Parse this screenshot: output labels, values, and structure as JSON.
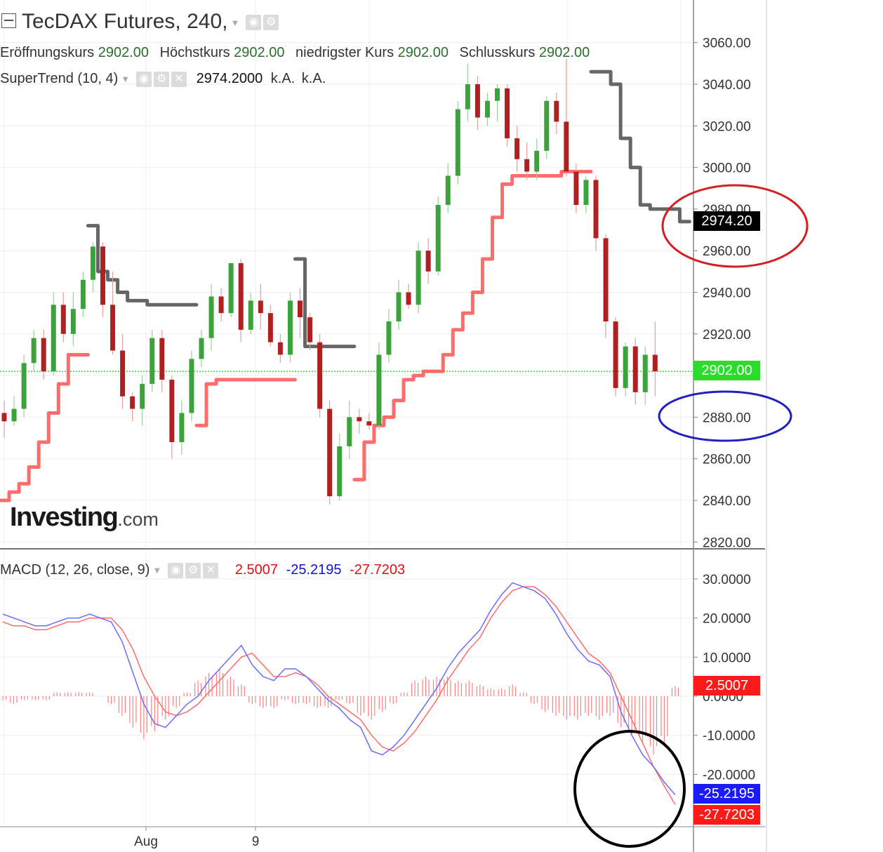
{
  "header": {
    "symbol_title": "TecDAX Futures, 240,",
    "ohlc": [
      {
        "label": "Eröffnungskurs",
        "value": "2902.00"
      },
      {
        "label": "Höchstkurs",
        "value": "2902.00"
      },
      {
        "label": "niedrigster Kurs",
        "value": "2902.00"
      },
      {
        "label": "Schlusskurs",
        "value": "2902.00"
      }
    ]
  },
  "supertrend": {
    "label": "SuperTrend (10, 4)",
    "value": "2974.2000",
    "na1": "k.A.",
    "na2": "k.A."
  },
  "macd": {
    "label": "MACD (12, 26, close, 9)",
    "hist_value": "2.5007",
    "macd_value": "-25.2195",
    "signal_value": "-27.7203"
  },
  "badges": {
    "supertrend": "2974.20",
    "last_price": "2902.00",
    "hist": "2.5007",
    "macd": "-25.2195",
    "signal": "-27.7203"
  },
  "logo": {
    "main": "Investing",
    "suffix": ".com"
  },
  "colors": {
    "up": "#3aa33a",
    "down": "#b02020",
    "supertrend_up": "#ff5c5c",
    "supertrend_down": "#555555",
    "macd_line": "#6b6bff",
    "signal_line": "#ff6b6b",
    "histogram": "#ff8080",
    "last_price_badge": "#2bdc2b",
    "supertrend_badge": "#000000",
    "macd_badge": "#1a1aff",
    "signal_badge": "#ff1a1a",
    "annotation_red": "#d32020",
    "annotation_blue": "#2020c0",
    "annotation_black": "#000000"
  },
  "chart_data": [
    {
      "type": "candlestick",
      "title": "TecDAX Futures, 240,",
      "y_ticks": [
        "3060.00",
        "3040.00",
        "3020.00",
        "3000.00",
        "2980.00",
        "2960.00",
        "2940.00",
        "2920.00",
        "2900.00",
        "2880.00",
        "2860.00",
        "2840.00",
        "2820.00"
      ],
      "x_ticks": [
        "Aug",
        "9"
      ],
      "ylim": [
        2820,
        3060
      ],
      "last_price": 2902.0,
      "grid": true,
      "candles": [
        [
          2882,
          2888,
          2870,
          2878
        ],
        [
          2878,
          2890,
          2876,
          2884
        ],
        [
          2884,
          2910,
          2880,
          2906
        ],
        [
          2906,
          2922,
          2902,
          2918
        ],
        [
          2918,
          2922,
          2898,
          2902
        ],
        [
          2902,
          2940,
          2900,
          2934
        ],
        [
          2934,
          2940,
          2916,
          2920
        ],
        [
          2920,
          2940,
          2914,
          2932
        ],
        [
          2932,
          2950,
          2928,
          2946
        ],
        [
          2946,
          2964,
          2940,
          2962
        ],
        [
          2962,
          2964,
          2928,
          2934
        ],
        [
          2934,
          2950,
          2910,
          2912
        ],
        [
          2912,
          2920,
          2884,
          2890
        ],
        [
          2890,
          2892,
          2878,
          2884
        ],
        [
          2884,
          2900,
          2876,
          2896
        ],
        [
          2896,
          2922,
          2892,
          2918
        ],
        [
          2918,
          2922,
          2892,
          2898
        ],
        [
          2898,
          2900,
          2860,
          2868
        ],
        [
          2868,
          2888,
          2862,
          2882
        ],
        [
          2882,
          2912,
          2878,
          2908
        ],
        [
          2908,
          2922,
          2904,
          2918
        ],
        [
          2918,
          2944,
          2912,
          2938
        ],
        [
          2938,
          2942,
          2926,
          2930
        ],
        [
          2930,
          2954,
          2928,
          2954
        ],
        [
          2954,
          2956,
          2916,
          2922
        ],
        [
          2922,
          2940,
          2920,
          2936
        ],
        [
          2936,
          2944,
          2922,
          2930
        ],
        [
          2930,
          2934,
          2914,
          2916
        ],
        [
          2916,
          2920,
          2906,
          2910
        ],
        [
          2910,
          2940,
          2906,
          2936
        ],
        [
          2936,
          2942,
          2918,
          2928
        ],
        [
          2928,
          2930,
          2912,
          2916
        ],
        [
          2916,
          2920,
          2880,
          2884
        ],
        [
          2884,
          2888,
          2838,
          2842
        ],
        [
          2842,
          2872,
          2840,
          2866
        ],
        [
          2866,
          2888,
          2860,
          2880
        ],
        [
          2880,
          2884,
          2872,
          2878
        ],
        [
          2878,
          2882,
          2874,
          2876
        ],
        [
          2876,
          2916,
          2874,
          2910
        ],
        [
          2910,
          2932,
          2906,
          2926
        ],
        [
          2926,
          2946,
          2922,
          2940
        ],
        [
          2940,
          2944,
          2932,
          2934
        ],
        [
          2934,
          2964,
          2930,
          2960
        ],
        [
          2960,
          2966,
          2944,
          2950
        ],
        [
          2950,
          2986,
          2948,
          2982
        ],
        [
          2982,
          3002,
          2978,
          2996
        ],
        [
          2996,
          3032,
          2992,
          3028
        ],
        [
          3028,
          3050,
          3022,
          3040
        ],
        [
          3040,
          3044,
          3018,
          3024
        ],
        [
          3024,
          3036,
          3020,
          3032
        ],
        [
          3032,
          3040,
          3022,
          3038
        ],
        [
          3038,
          3040,
          3010,
          3014
        ],
        [
          3014,
          3020,
          2998,
          3004
        ],
        [
          3004,
          3012,
          2994,
          2998
        ],
        [
          2998,
          3014,
          2994,
          3008
        ],
        [
          3008,
          3034,
          3004,
          3032
        ],
        [
          3032,
          3036,
          3016,
          3022
        ],
        [
          3022,
          3052,
          2996,
          2998
        ],
        [
          2998,
          3002,
          2978,
          2982
        ],
        [
          2982,
          2996,
          2978,
          2994
        ],
        [
          2994,
          2996,
          2960,
          2966
        ],
        [
          2966,
          2968,
          2918,
          2926
        ],
        [
          2926,
          2928,
          2890,
          2894
        ],
        [
          2894,
          2916,
          2890,
          2914
        ],
        [
          2914,
          2918,
          2886,
          2892
        ],
        [
          2892,
          2914,
          2886,
          2910
        ],
        [
          2910,
          2926,
          2890,
          2902
        ]
      ],
      "supertrend_segments": [
        {
          "trend": "up",
          "values": [
            2840,
            2844,
            2848,
            2856,
            2868,
            2882,
            2896,
            2910,
            2910
          ]
        },
        {
          "trend": "down",
          "values": [
            2972,
            2950,
            2946,
            2940,
            2936,
            2936,
            2934,
            2934,
            2934,
            2934,
            2934
          ]
        },
        {
          "trend": "up",
          "values": [
            2876,
            2896,
            2898,
            2898,
            2898,
            2898,
            2898,
            2898,
            2898,
            2898
          ]
        },
        {
          "trend": "down",
          "values": [
            2956,
            2914,
            2914,
            2914,
            2914,
            2914
          ]
        },
        {
          "trend": "up",
          "values": [
            2850,
            2868,
            2876,
            2880,
            2888,
            2898,
            2900,
            2902,
            2902,
            2910,
            2922,
            2930,
            2940,
            2956,
            2976,
            2992,
            2996,
            2996,
            2996,
            2996,
            2996,
            2998,
            2998,
            2998
          ]
        },
        {
          "trend": "down",
          "values": [
            3046,
            3046,
            3040,
            3014,
            3000,
            2982,
            2980,
            2980,
            2980,
            2974
          ]
        }
      ]
    },
    {
      "type": "macd",
      "title": "MACD (12, 26, close, 9)",
      "y_ticks": [
        "30.0000",
        "20.0000",
        "10.0000",
        "0.0000",
        "-10.0000",
        "-20.0000"
      ],
      "ylim": [
        -33,
        33
      ],
      "macd": [
        21,
        20,
        19,
        18,
        18,
        19,
        20,
        20,
        21,
        20,
        19,
        14,
        6,
        -2,
        -7,
        -8,
        -5,
        -2,
        0,
        4,
        7,
        10,
        13,
        8,
        5,
        4,
        7,
        7,
        5,
        2,
        -1,
        -3,
        -6,
        -8,
        -14,
        -15,
        -13,
        -10,
        -6,
        -2,
        2,
        7,
        11,
        14,
        17,
        22,
        26,
        29,
        28,
        27,
        25,
        21,
        16,
        12,
        9,
        8,
        5,
        -4,
        -10,
        -15,
        -18,
        -22,
        -25.2195
      ],
      "signal": [
        19,
        18,
        18,
        17,
        17,
        18,
        19,
        19,
        20,
        20,
        20,
        17,
        12,
        5,
        0,
        -4,
        -5,
        -4,
        -2,
        1,
        4,
        7,
        10,
        11,
        8,
        5,
        5,
        6,
        5,
        3,
        0,
        -2,
        -4,
        -6,
        -10,
        -13,
        -14,
        -12,
        -9,
        -5,
        -1,
        4,
        8,
        12,
        15,
        20,
        24,
        27,
        28,
        28,
        26,
        23,
        19,
        15,
        11,
        9,
        6,
        0,
        -6,
        -12,
        -18,
        -23,
        -27.7203
      ],
      "histogram": [
        -1,
        -2,
        -1,
        -1,
        -1,
        1,
        1,
        1,
        1,
        0,
        -2,
        -5,
        -8,
        -11,
        -9,
        -6,
        -3,
        1,
        4,
        6,
        7,
        5,
        3,
        -2,
        -3,
        -3,
        -1,
        -2,
        -2,
        -3,
        -3,
        -1,
        -2,
        -5,
        -6,
        -4,
        -2,
        1,
        4,
        5,
        5,
        5,
        4,
        4,
        3,
        2,
        2,
        3,
        1,
        -2,
        -4,
        -5,
        -6,
        -6,
        -5,
        -6,
        -5,
        -8,
        -10,
        -12,
        -15,
        -12,
        2.5007
      ]
    }
  ]
}
